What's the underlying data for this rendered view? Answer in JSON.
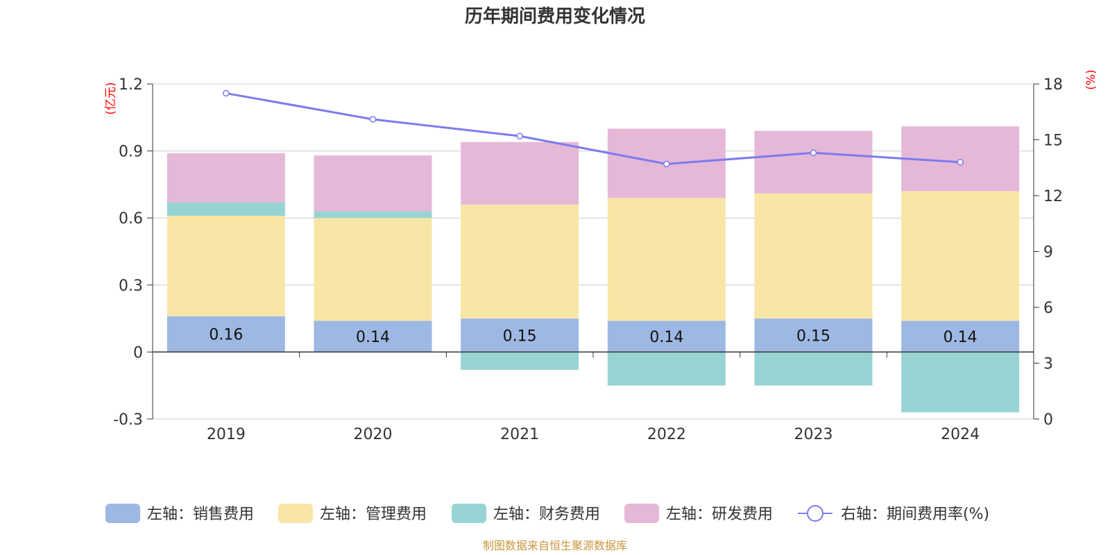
{
  "colors": {
    "sales": "#9DB8E2",
    "mgmt": "#F8E6A7",
    "finance": "#97D4D3",
    "rnd": "#E6B8D8",
    "line": "#7B7BEE",
    "unit": "#FF0000",
    "source": "#C8963E",
    "grid": "#CCCCCC",
    "axis": "#333333"
  },
  "chart_data": {
    "type": "bar",
    "stacked": true,
    "title": "历年期间费用变化情况",
    "categories": [
      "2019",
      "2020",
      "2021",
      "2022",
      "2023",
      "2024"
    ],
    "left_unit": "(亿元)",
    "right_unit": "(%)",
    "ylim_left": [
      -0.3,
      1.2
    ],
    "yticks_left": [
      "-0.3",
      "0",
      "0.3",
      "0.6",
      "0.9",
      "1.2"
    ],
    "ylim_right": [
      0,
      18
    ],
    "yticks_right": [
      "0",
      "3",
      "6",
      "9",
      "12",
      "15",
      "18"
    ],
    "grid": true,
    "legend_position": "bottom",
    "series": [
      {
        "key": "sales",
        "name": "左轴：销售费用",
        "axis": "left",
        "type": "bar",
        "values": [
          0.16,
          0.14,
          0.15,
          0.14,
          0.15,
          0.14
        ],
        "labels": [
          "0.16",
          "0.14",
          "0.15",
          "0.14",
          "0.15",
          "0.14"
        ]
      },
      {
        "key": "mgmt",
        "name": "左轴：管理费用",
        "axis": "left",
        "type": "bar",
        "values": [
          0.45,
          0.46,
          0.51,
          0.55,
          0.56,
          0.58
        ]
      },
      {
        "key": "finance",
        "name": "左轴：财务费用",
        "axis": "left",
        "type": "bar",
        "values": [
          0.06,
          0.03,
          -0.08,
          -0.15,
          -0.15,
          -0.27
        ]
      },
      {
        "key": "rnd",
        "name": "左轴：研发费用",
        "axis": "left",
        "type": "bar",
        "values": [
          0.22,
          0.25,
          0.28,
          0.31,
          0.28,
          0.29
        ]
      },
      {
        "key": "line",
        "name": "右轴：期间费用率(%)",
        "axis": "right",
        "type": "line",
        "values": [
          17.5,
          16.1,
          15.2,
          13.7,
          14.3,
          13.8
        ]
      }
    ]
  },
  "source_text": "制图数据来自恒生聚源数据库"
}
